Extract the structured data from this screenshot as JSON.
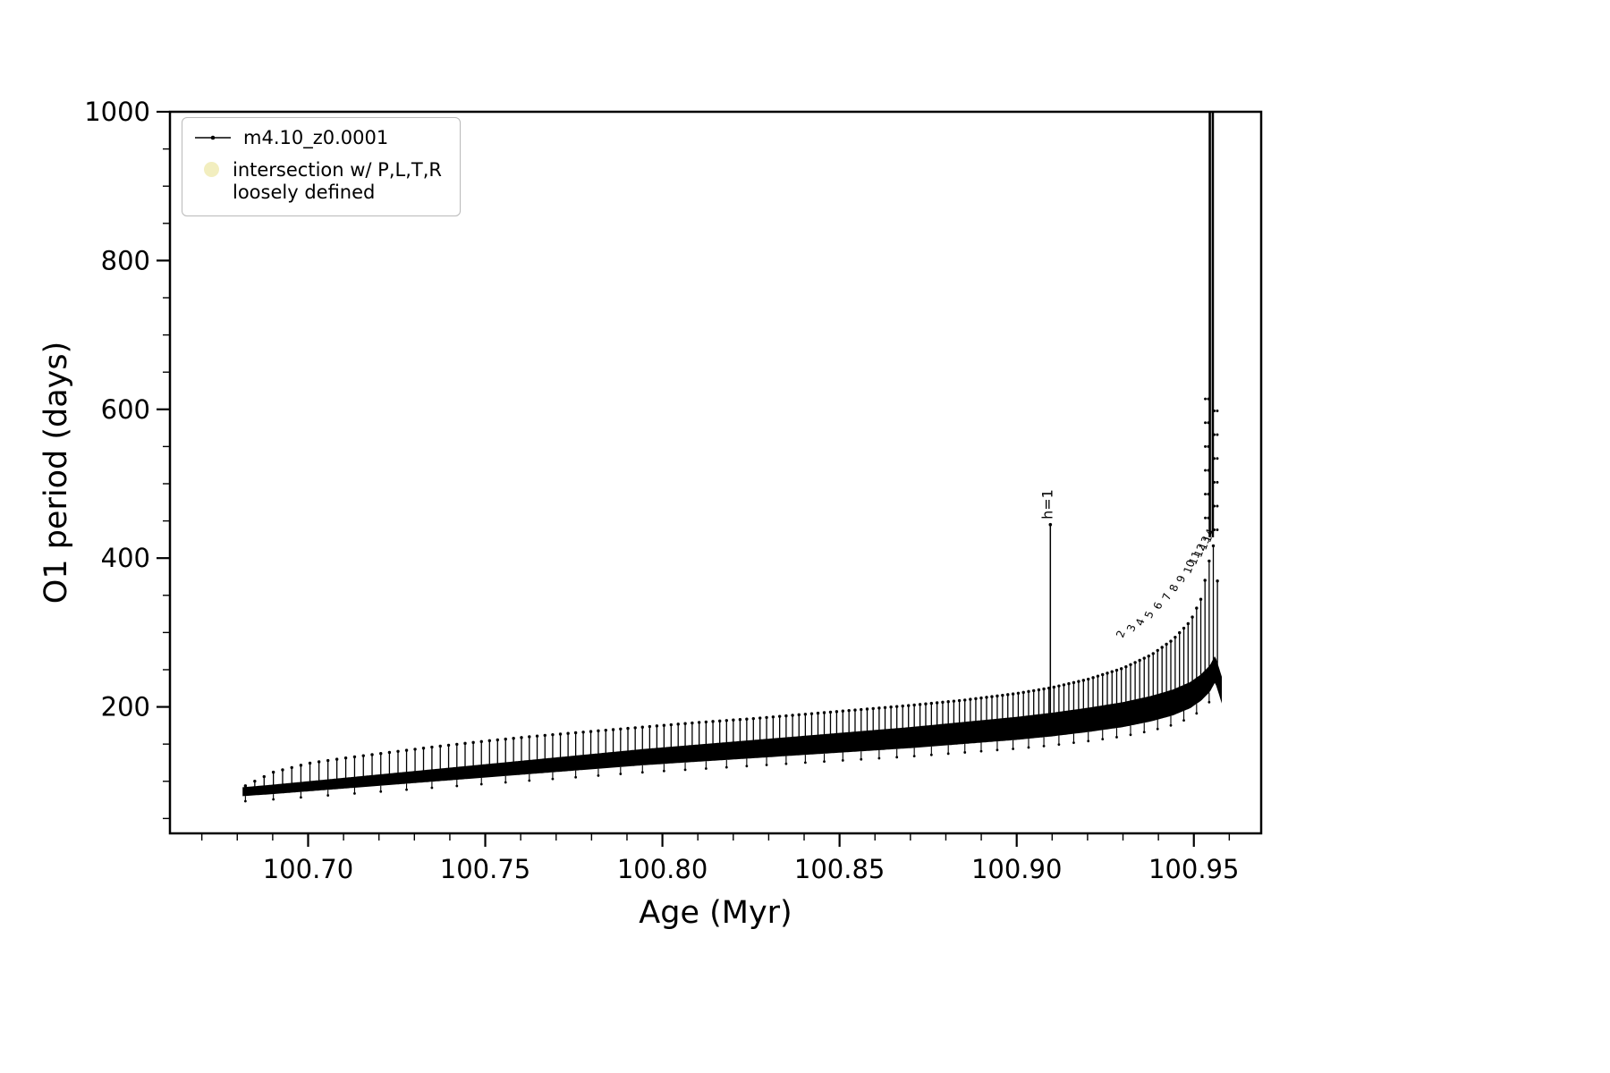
{
  "figure": {
    "background": "#ffffff",
    "frame_color": "#000000"
  },
  "chart_data": {
    "type": "line",
    "title": "",
    "xlabel": "Age (Myr)",
    "ylabel": "O1 period (days)",
    "xlim": [
      100.661,
      100.969
    ],
    "ylim": [
      30,
      1000
    ],
    "grid": false,
    "x_ticks": {
      "values": [
        100.7,
        100.75,
        100.8,
        100.85,
        100.9,
        100.95
      ],
      "labels": [
        "100.70",
        "100.75",
        "100.80",
        "100.85",
        "100.90",
        "100.95"
      ]
    },
    "y_ticks": {
      "values": [
        200,
        400,
        600,
        800,
        1000
      ],
      "labels": [
        "200",
        "400",
        "600",
        "800",
        "1000"
      ]
    },
    "x_minor_step": 0.01,
    "y_minor_step": 50,
    "legend": {
      "position": "upper-left",
      "entries": [
        {
          "label": "m4.10_z0.0001",
          "marker": "line-dot",
          "color": "#000000"
        },
        {
          "label": "intersection w/ P,L,T,R",
          "label2": "loosely defined",
          "marker": "circle",
          "color": "#f2eebf"
        }
      ]
    },
    "series": [
      {
        "name": "m4.10_z0.0001",
        "color": "#000000",
        "style": "rapidly oscillating pulsation period with point markers; values swing between lower and upper envelope",
        "envelope": [
          [
            100.6815,
            84,
            92
          ],
          [
            100.69,
            87,
            112
          ],
          [
            100.7,
            91,
            124
          ],
          [
            100.71,
            95,
            131
          ],
          [
            100.72,
            99,
            137
          ],
          [
            100.735,
            105,
            146
          ],
          [
            100.75,
            111,
            154
          ],
          [
            100.765,
            117,
            161
          ],
          [
            100.78,
            123,
            167
          ],
          [
            100.795,
            129,
            173
          ],
          [
            100.81,
            134,
            179
          ],
          [
            100.825,
            139,
            184
          ],
          [
            100.84,
            144,
            190
          ],
          [
            100.855,
            149,
            196
          ],
          [
            100.87,
            154,
            202
          ],
          [
            100.885,
            160,
            209
          ],
          [
            100.9,
            166,
            218
          ],
          [
            100.91,
            171,
            226
          ],
          [
            100.92,
            177,
            237
          ],
          [
            100.93,
            184,
            252
          ],
          [
            100.938,
            192,
            270
          ],
          [
            100.944,
            200,
            290
          ],
          [
            100.949,
            210,
            315
          ],
          [
            100.952,
            220,
            345
          ],
          [
            100.9545,
            232,
            400
          ],
          [
            100.956,
            245,
            425
          ],
          [
            100.958,
            215,
            255
          ]
        ]
      }
    ],
    "features": {
      "h1_spike": {
        "x": 100.9095,
        "y_base": 175,
        "y_top": 445
      },
      "terminal_rise": {
        "x_lines": [
          100.9545,
          100.95535
        ],
        "y_from": 428,
        "y_to": 1000
      }
    },
    "annotations": [
      {
        "text": "h=1",
        "x": 100.9095,
        "y": 452,
        "rotation": -90,
        "size": 16
      },
      {
        "text": "2",
        "x": 100.9295,
        "y": 292,
        "rotation": -70,
        "size": 12
      },
      {
        "text": "3",
        "x": 100.9325,
        "y": 300,
        "rotation": -70,
        "size": 12
      },
      {
        "text": "4",
        "x": 100.935,
        "y": 308,
        "rotation": -70,
        "size": 12
      },
      {
        "text": "5",
        "x": 100.9375,
        "y": 318,
        "rotation": -70,
        "size": 12
      },
      {
        "text": "6",
        "x": 100.94,
        "y": 330,
        "rotation": -70,
        "size": 12
      },
      {
        "text": "7",
        "x": 100.9425,
        "y": 342,
        "rotation": -70,
        "size": 12
      },
      {
        "text": "8",
        "x": 100.9445,
        "y": 354,
        "rotation": -70,
        "size": 12
      },
      {
        "text": "9",
        "x": 100.9465,
        "y": 366,
        "rotation": -70,
        "size": 12
      },
      {
        "text": "10",
        "x": 100.9485,
        "y": 378,
        "rotation": -70,
        "size": 12
      },
      {
        "text": "11",
        "x": 100.95,
        "y": 390,
        "rotation": -70,
        "size": 12
      },
      {
        "text": "12",
        "x": 100.9515,
        "y": 400,
        "rotation": -70,
        "size": 12
      },
      {
        "text": "13",
        "x": 100.9528,
        "y": 410,
        "rotation": -70,
        "size": 12
      },
      {
        "text": "14",
        "x": 100.954,
        "y": 420,
        "rotation": -70,
        "size": 12
      }
    ]
  }
}
